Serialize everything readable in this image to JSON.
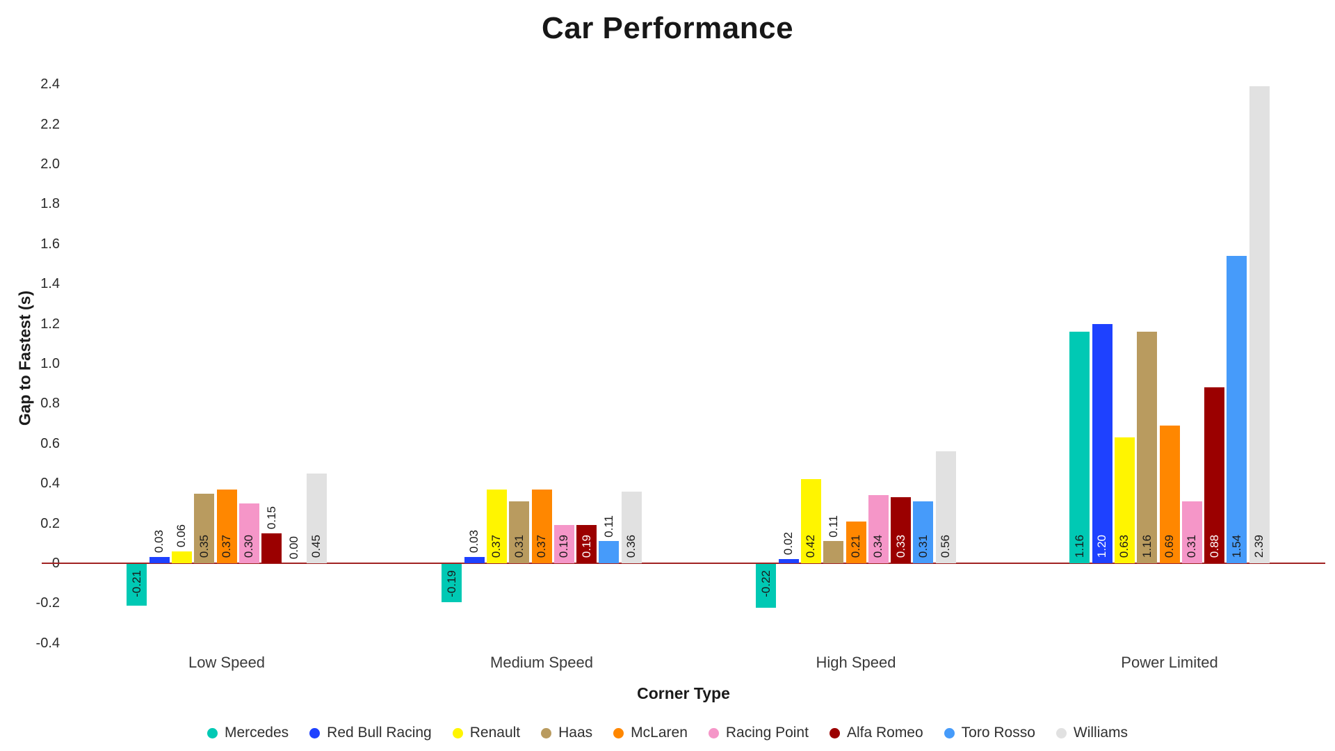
{
  "chart_data": {
    "type": "bar",
    "title": "Car Performance",
    "xlabel": "Corner Type",
    "ylabel": "Gap to Fastest (s)",
    "categories": [
      "Low Speed",
      "Medium Speed",
      "High Speed",
      "Power Limited"
    ],
    "series": [
      {
        "name": "Mercedes",
        "color": "#00C9B4",
        "label_color": "#1a1a1a",
        "values": [
          -0.21,
          -0.19,
          -0.22,
          1.16
        ]
      },
      {
        "name": "Red Bull Racing",
        "color": "#1E41FF",
        "label_color": "#ffffff",
        "values": [
          0.03,
          0.03,
          0.02,
          1.2
        ]
      },
      {
        "name": "Renault",
        "color": "#FFF500",
        "label_color": "#1a1a1a",
        "values": [
          0.06,
          0.37,
          0.42,
          0.63
        ]
      },
      {
        "name": "Haas",
        "color": "#B99B5F",
        "label_color": "#1a1a1a",
        "values": [
          0.35,
          0.31,
          0.11,
          1.16
        ]
      },
      {
        "name": "McLaren",
        "color": "#FF8700",
        "label_color": "#1a1a1a",
        "values": [
          0.37,
          0.37,
          0.21,
          0.69
        ]
      },
      {
        "name": "Racing Point",
        "color": "#F596C8",
        "label_color": "#1a1a1a",
        "values": [
          0.3,
          0.19,
          0.34,
          0.31
        ]
      },
      {
        "name": "Alfa Romeo",
        "color": "#9B0000",
        "label_color": "#ffffff",
        "values": [
          0.15,
          0.19,
          0.33,
          0.88
        ]
      },
      {
        "name": "Toro Rosso",
        "color": "#469BFA",
        "label_color": "#1a1a1a",
        "values": [
          0.0,
          0.11,
          0.31,
          1.54
        ]
      },
      {
        "name": "Williams",
        "color": "#E1E1E1",
        "label_color": "#1a1a1a",
        "values": [
          0.45,
          0.36,
          0.56,
          2.39
        ]
      }
    ],
    "yticks": [
      -0.4,
      -0.2,
      0,
      0.2,
      0.4,
      0.6,
      0.8,
      1.0,
      1.2,
      1.4,
      1.6,
      1.8,
      2.0,
      2.2,
      2.4
    ],
    "ylim": [
      -0.5,
      2.5
    ],
    "grid": false,
    "legend_position": "bottom",
    "axis_line_color": "#A02222",
    "outside_label_color": "#1a1a1a"
  }
}
